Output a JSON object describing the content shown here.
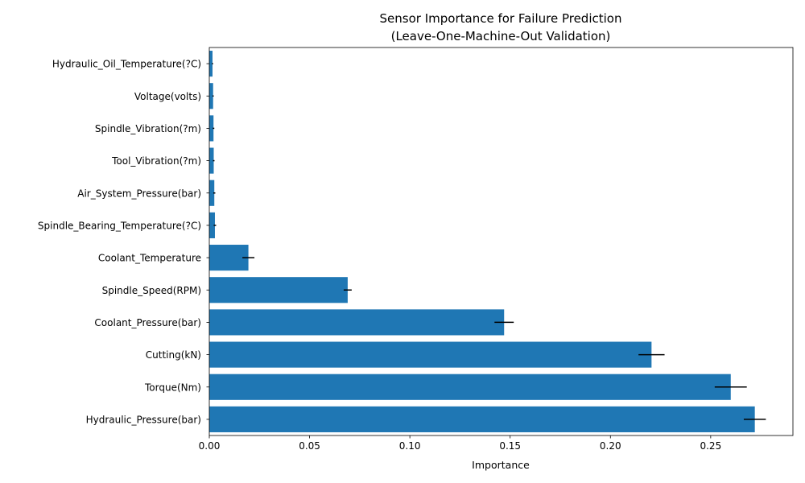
{
  "chart_data": {
    "type": "bar",
    "orientation": "horizontal",
    "title_lines": [
      "Sensor Importance for Failure Prediction",
      "(Leave-One-Machine-Out Validation)"
    ],
    "xlabel": "Importance",
    "ylabel": "",
    "xlim": [
      0,
      0.291
    ],
    "xticks": [
      0.0,
      0.05,
      0.1,
      0.15,
      0.2,
      0.25
    ],
    "xtick_labels": [
      "0.00",
      "0.05",
      "0.10",
      "0.15",
      "0.20",
      "0.25"
    ],
    "grid": false,
    "bar_color": "#1f77b4",
    "error_color": "#000000",
    "categories": [
      "Hydraulic_Pressure(bar)",
      "Torque(Nm)",
      "Cutting(kN)",
      "Coolant_Pressure(bar)",
      "Spindle_Speed(RPM)",
      "Coolant_Temperature",
      "Spindle_Bearing_Temperature(?C)",
      "Air_System_Pressure(bar)",
      "Tool_Vibration(?m)",
      "Spindle_Vibration(?m)",
      "Voltage(volts)",
      "Hydraulic_Oil_Temperature(?C)"
    ],
    "values": [
      0.272,
      0.26,
      0.2205,
      0.147,
      0.069,
      0.0195,
      0.0028,
      0.0025,
      0.0022,
      0.0021,
      0.0019,
      0.0016
    ],
    "errors": [
      0.0055,
      0.008,
      0.0065,
      0.0048,
      0.002,
      0.003,
      0.0006,
      0.0005,
      0.0004,
      0.0004,
      0.0003,
      0.0003
    ]
  }
}
